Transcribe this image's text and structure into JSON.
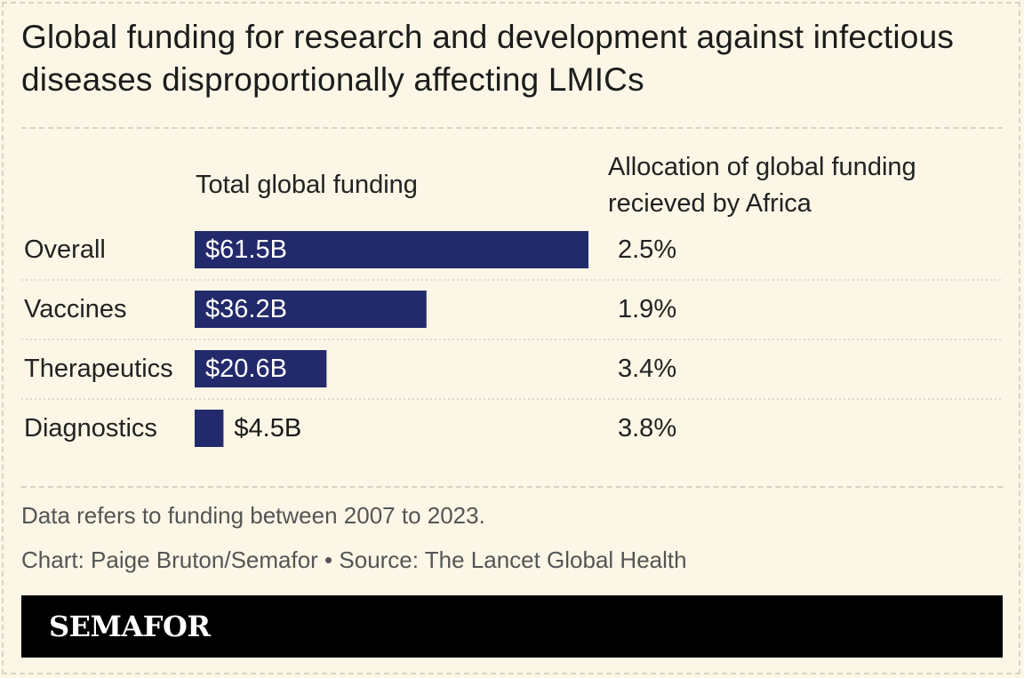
{
  "title": "Global funding for research and development against infectious diseases disproportionally affecting LMICs",
  "columns": {
    "funding_header": "Total global funding",
    "africa_header": "Allocation of global funding recieved by Africa"
  },
  "notes": {
    "period": "Data refers to funding between 2007 to 2023.",
    "credit": "Chart: Paige Bruton/Semafor • Source: The Lancet Global Health"
  },
  "brand": "SEMAFOR",
  "colors": {
    "bar": "#232a6b",
    "background": "#fbf6e6",
    "label_inside": "#ffffff",
    "label_outside": "#1a1a1a"
  },
  "chart_data": {
    "type": "bar",
    "orientation": "horizontal",
    "categories": [
      "Overall",
      "Vaccines",
      "Therapeutics",
      "Diagnostics"
    ],
    "series": [
      {
        "values": [
          61.5,
          36.2,
          20.6,
          4.5
        ],
        "labels": [
          "$61.5B",
          "$36.2B",
          "$20.6B",
          "$4.5B"
        ]
      }
    ],
    "africa_share": [
      "2.5%",
      "1.9%",
      "3.4%",
      "3.8%"
    ],
    "xlim": [
      0,
      61.5
    ],
    "grid": false,
    "legend": "none"
  }
}
